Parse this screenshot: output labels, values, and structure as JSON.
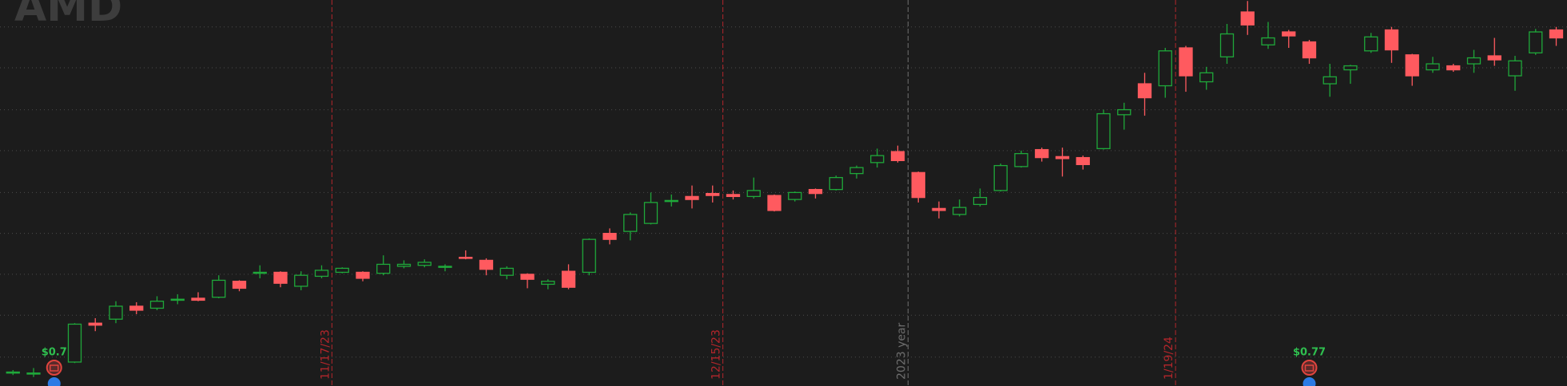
{
  "chart_data": {
    "type": "candlestick",
    "symbol": "AMD",
    "categories": [
      null,
      null,
      null,
      null,
      null,
      null,
      null,
      null,
      null,
      null,
      null,
      null,
      null,
      null,
      null,
      "11/17/23",
      null,
      null,
      null,
      null,
      null,
      null,
      null,
      null,
      null,
      null,
      null,
      null,
      null,
      null,
      null,
      null,
      null,
      null,
      "12/15/23",
      null,
      null,
      null,
      null,
      null,
      null,
      null,
      null,
      "2023 year",
      null,
      null,
      null,
      null,
      null,
      null,
      null,
      null,
      null,
      null,
      null,
      null,
      "1/19/24",
      null,
      null,
      null,
      null,
      null,
      null,
      null,
      null,
      null,
      null,
      null,
      null,
      null,
      null,
      null,
      null,
      null,
      null,
      null
    ],
    "marker_colors": [
      "#b3262b",
      "#b3262b",
      "#6e6e6e",
      "#b3262b"
    ],
    "event_labels": [
      null,
      null,
      "$0.7",
      null,
      null,
      null,
      null,
      null,
      null,
      null,
      null,
      null,
      null,
      null,
      null,
      null,
      null,
      null,
      null,
      null,
      null,
      null,
      null,
      null,
      null,
      null,
      null,
      null,
      null,
      null,
      null,
      null,
      null,
      null,
      null,
      null,
      null,
      null,
      null,
      null,
      null,
      null,
      null,
      null,
      null,
      null,
      null,
      null,
      null,
      null,
      null,
      null,
      null,
      null,
      null,
      null,
      null,
      null,
      null,
      null,
      null,
      null,
      null,
      "$0.77",
      null,
      null,
      null,
      null,
      null,
      null,
      null,
      null,
      null,
      null,
      null,
      null
    ],
    "open": [
      13,
      12,
      16,
      24,
      63,
      67,
      80,
      78,
      86,
      88,
      89,
      105,
      113,
      114,
      100,
      110,
      114,
      114,
      113,
      120,
      121,
      119,
      129,
      126,
      111,
      112,
      102,
      115,
      114,
      153,
      155,
      163,
      185,
      190,
      193,
      192,
      190,
      191,
      187,
      197,
      197,
      213,
      224,
      235,
      214,
      178,
      172,
      182,
      196,
      220,
      237,
      230,
      229,
      238,
      272,
      303,
      301,
      339,
      305,
      330,
      375,
      342,
      355,
      345,
      303,
      317,
      336,
      357,
      332,
      317,
      321,
      323,
      331,
      311,
      334,
      357
    ],
    "high": [
      16,
      18,
      19,
      63,
      68,
      85,
      84,
      90,
      92,
      94,
      111,
      106,
      121,
      115,
      115,
      121,
      119,
      115,
      131,
      126,
      127,
      122,
      136,
      128,
      120,
      113,
      107,
      122,
      148,
      158,
      174,
      194,
      192,
      201,
      201,
      196,
      209,
      192,
      195,
      198,
      211,
      221,
      238,
      241,
      215,
      185,
      187,
      198,
      223,
      236,
      239,
      239,
      231,
      277,
      284,
      314,
      339,
      341,
      320,
      363,
      386,
      365,
      357,
      347,
      323,
      322,
      354,
      360,
      333,
      330,
      323,
      337,
      349,
      331,
      358,
      360
    ],
    "low": [
      11,
      9,
      14,
      23,
      55,
      63,
      72,
      76,
      82,
      85,
      88,
      95,
      108,
      99,
      96,
      108,
      113,
      105,
      111,
      118,
      119,
      115,
      127,
      111,
      107,
      98,
      97,
      97,
      111,
      142,
      146,
      162,
      180,
      178,
      184,
      187,
      188,
      175,
      185,
      188,
      196,
      208,
      219,
      224,
      184,
      168,
      170,
      180,
      195,
      219,
      225,
      210,
      217,
      237,
      257,
      271,
      289,
      295,
      297,
      323,
      352,
      338,
      339,
      323,
      290,
      303,
      334,
      324,
      301,
      314,
      315,
      314,
      321,
      296,
      332,
      341
    ],
    "close": [
      14,
      13,
      17,
      62,
      61,
      80,
      76,
      85,
      87,
      86,
      106,
      98,
      114,
      103,
      111,
      116,
      118,
      108,
      122,
      122,
      124,
      120,
      128,
      117,
      118,
      107,
      105,
      99,
      147,
      147,
      172,
      184,
      186,
      187,
      191,
      190,
      196,
      176,
      194,
      193,
      209,
      219,
      231,
      226,
      189,
      176,
      179,
      189,
      221,
      233,
      229,
      228,
      222,
      273,
      277,
      289,
      336,
      311,
      314,
      353,
      362,
      349,
      351,
      329,
      310,
      321,
      350,
      337,
      311,
      323,
      317,
      329,
      327,
      326,
      355,
      349
    ],
    "up_color": "#1fa83a",
    "down_color": "#ff5a5f",
    "event_color": "#2fbf4f",
    "ylim": [
      0,
      387
    ],
    "yticks": [
      29,
      71,
      112,
      153,
      194,
      236,
      277,
      319,
      360
    ],
    "grid": true
  }
}
